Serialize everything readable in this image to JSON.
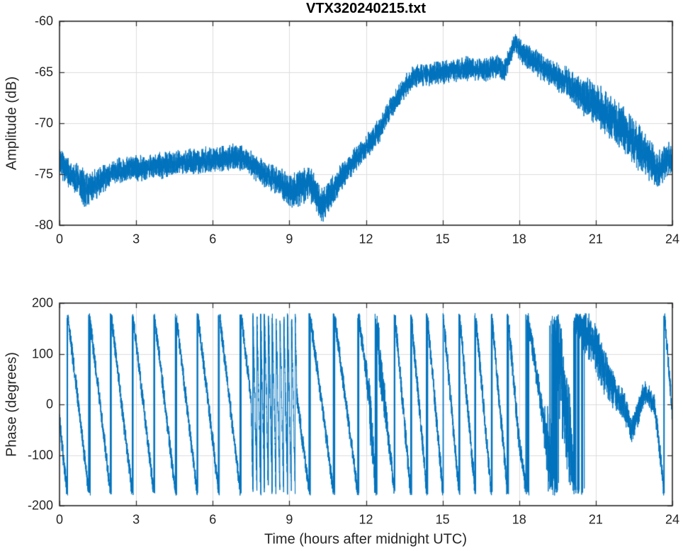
{
  "figure_title": "VTX320240215.txt",
  "axes_style": {
    "background": "#ffffff",
    "box_color": "#262626",
    "grid_color": "#dcdcdc",
    "text_color": "#262626",
    "line_color": "#0072BD"
  },
  "chart_data": [
    {
      "type": "line",
      "title": "VTX320240215.txt",
      "xlabel": "",
      "ylabel": "Amplitude (dB)",
      "xlim": [
        0,
        24
      ],
      "ylim": [
        -80,
        -60
      ],
      "xticks": [
        0,
        3,
        6,
        9,
        12,
        15,
        18,
        21,
        24
      ],
      "yticks": [
        -80,
        -75,
        -70,
        -65,
        -60
      ],
      "grid": true,
      "legend_position": "none",
      "line_color": "#0072BD",
      "series": [
        {
          "name": "amplitude",
          "unit": "dB",
          "trend_keypoints": [
            [
              0,
              -73.6
            ],
            [
              0.3,
              -74.8
            ],
            [
              1.1,
              -76.6
            ],
            [
              1.6,
              -75.6
            ],
            [
              2.2,
              -74.6
            ],
            [
              3,
              -74.4
            ],
            [
              4,
              -74.1
            ],
            [
              5,
              -73.8
            ],
            [
              6,
              -73.6
            ],
            [
              6.8,
              -73.2
            ],
            [
              7.3,
              -73.6
            ],
            [
              7.7,
              -74.4
            ],
            [
              8.6,
              -75.8
            ],
            [
              9.1,
              -76.8
            ],
            [
              9.5,
              -76.2
            ],
            [
              9.8,
              -75.9
            ],
            [
              10.3,
              -78
            ],
            [
              10.7,
              -76.6
            ],
            [
              11,
              -75.4
            ],
            [
              11.5,
              -73.8
            ],
            [
              12,
              -72.4
            ],
            [
              12.5,
              -70.8
            ],
            [
              13,
              -68.4
            ],
            [
              13.4,
              -66.8
            ],
            [
              13.8,
              -65.6
            ],
            [
              14.3,
              -65.2
            ],
            [
              15.2,
              -64.9
            ],
            [
              16,
              -64.6
            ],
            [
              16.6,
              -64.8
            ],
            [
              17.1,
              -64.4
            ],
            [
              17.45,
              -64.7
            ],
            [
              17.8,
              -62.2
            ],
            [
              18.2,
              -63.2
            ],
            [
              19,
              -64.7
            ],
            [
              19.9,
              -66.1
            ],
            [
              20.8,
              -67.8
            ],
            [
              21.7,
              -69.6
            ],
            [
              22.6,
              -72.1
            ],
            [
              23.45,
              -74.6
            ],
            [
              23.85,
              -73.5
            ],
            [
              24,
              -73.9
            ]
          ],
          "noise_halfwidth_keypoints": [
            [
              0,
              1.1
            ],
            [
              1,
              1.4
            ],
            [
              2,
              1
            ],
            [
              7,
              1
            ],
            [
              8.5,
              1.1
            ],
            [
              9.2,
              1.4
            ],
            [
              10.4,
              1.4
            ],
            [
              11.2,
              1
            ],
            [
              13,
              0.9
            ],
            [
              17.3,
              0.9
            ],
            [
              17.8,
              0.8
            ],
            [
              18.3,
              1
            ],
            [
              19.5,
              1.1
            ],
            [
              20.5,
              1.5
            ],
            [
              21.5,
              1.8
            ],
            [
              22.5,
              1.8
            ],
            [
              23.2,
              1.5
            ],
            [
              24,
              1.2
            ]
          ]
        }
      ]
    },
    {
      "type": "line",
      "title": "",
      "xlabel": "Time (hours after midnight UTC)",
      "ylabel": "Phase (degrees)",
      "xlim": [
        0,
        24
      ],
      "ylim": [
        -200,
        200
      ],
      "xticks": [
        0,
        3,
        6,
        9,
        12,
        15,
        18,
        21,
        24
      ],
      "yticks": [
        -200,
        -100,
        0,
        100,
        200
      ],
      "grid": true,
      "legend_position": "none",
      "line_color": "#0072BD",
      "wrap_degrees": 180,
      "series": [
        {
          "name": "phase",
          "unit": "degrees",
          "unwrapped_trend_keypoints": [
            [
              0,
              -30
            ],
            [
              0.18,
              -120
            ],
            [
              0.35,
              -195
            ],
            [
              7.5,
              -3229
            ],
            [
              9.3,
              -7549
            ],
            [
              12.1,
              -8613
            ],
            [
              12.5,
              -8893
            ],
            [
              13.1,
              -9163
            ],
            [
              18,
              -11956
            ],
            [
              19.1,
              -12319
            ],
            [
              20.05,
              -12700
            ],
            [
              20.15,
              -12790
            ],
            [
              20.5,
              -12810
            ],
            [
              21,
              -12850
            ],
            [
              21.4,
              -12900
            ],
            [
              21.8,
              -12940
            ],
            [
              22.1,
              -12960
            ],
            [
              22.4,
              -13015
            ],
            [
              22.7,
              -12970
            ],
            [
              22.9,
              -12935
            ],
            [
              23.15,
              -12950
            ],
            [
              23.3,
              -12960
            ],
            [
              23.5,
              -13050
            ],
            [
              23.68,
              -13135
            ],
            [
              24,
              -13340
            ]
          ],
          "noise_halfwidth_keypoints": [
            [
              0,
              15
            ],
            [
              7.4,
              15
            ],
            [
              7.6,
              25
            ],
            [
              9.2,
              25
            ],
            [
              9.5,
              15
            ],
            [
              11.95,
              15
            ],
            [
              12.15,
              40
            ],
            [
              12.6,
              40
            ],
            [
              12.9,
              18
            ],
            [
              17.9,
              18
            ],
            [
              18.9,
              22
            ],
            [
              19.25,
              85
            ],
            [
              19.95,
              85
            ],
            [
              20.2,
              30
            ],
            [
              20.5,
              38
            ],
            [
              21.3,
              38
            ],
            [
              21.9,
              25
            ],
            [
              22.6,
              20
            ],
            [
              23.3,
              18
            ],
            [
              24,
              15
            ]
          ]
        }
      ]
    }
  ]
}
